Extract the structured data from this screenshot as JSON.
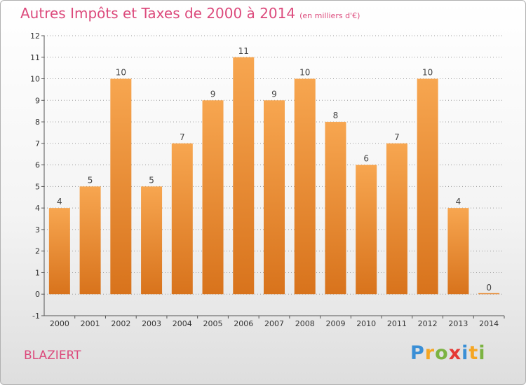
{
  "header": {
    "title": "Autres Impôts et Taxes de 2000 à 2014",
    "subtitle": "(en milliers d'€)"
  },
  "commune": "BLAZIERT",
  "logo": [
    "P",
    "r",
    "o",
    "x",
    "i",
    "t",
    "i"
  ],
  "colors": {
    "bar_top": "#f7a650",
    "bar_bottom": "#d8731c",
    "title": "#dc4a7c",
    "grid": "#9a9a9a"
  },
  "chart_data": {
    "type": "bar",
    "categories": [
      "2000",
      "2001",
      "2002",
      "2003",
      "2004",
      "2005",
      "2006",
      "2007",
      "2008",
      "2009",
      "2010",
      "2011",
      "2012",
      "2013",
      "2014"
    ],
    "values": [
      4,
      5,
      10,
      5,
      7,
      9,
      11,
      9,
      10,
      8,
      6,
      7,
      10,
      4,
      0
    ],
    "ylim": [
      -1,
      12
    ],
    "yticks": [
      "-1",
      "0",
      "1",
      "2",
      "3",
      "4",
      "5",
      "6",
      "7",
      "8",
      "9",
      "10",
      "11",
      "12"
    ],
    "grid": true
  }
}
